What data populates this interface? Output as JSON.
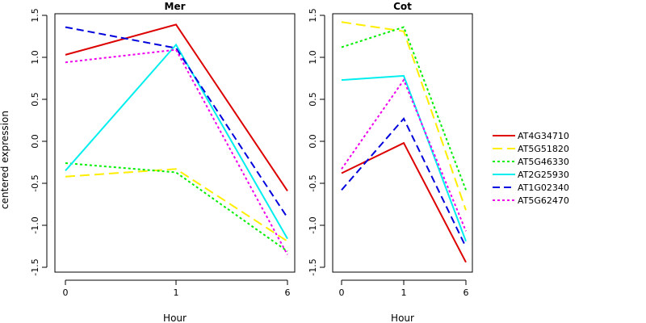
{
  "ylabel": "centered expression",
  "xlabel": "Hour",
  "colors": {
    "AT4G34710": "#dd0000",
    "AT5G51820": "#ffee00",
    "AT5G46330": "#00ee00",
    "AT2G25930": "#00eeee",
    "AT1G02340": "#0000dd",
    "AT5G62470": "#ee00ee"
  },
  "chart_data": [
    {
      "type": "line",
      "title": "Mer",
      "xlabel": "Hour",
      "ylabel": "centered expression",
      "categories": [
        "0",
        "1",
        "6"
      ],
      "yticks": [
        "-1.5",
        "-1.0",
        "-0.5",
        "0.0",
        "0.5",
        "1.0",
        "1.5"
      ],
      "ylim": [
        -1.5,
        1.5
      ],
      "legend": "none",
      "grid": false,
      "series": [
        {
          "name": "AT4G34710",
          "values": [
            1.03,
            1.39,
            -0.59
          ],
          "dash": "solid"
        },
        {
          "name": "AT5G51820",
          "values": [
            -0.42,
            -0.33,
            -1.19
          ],
          "dash": "longdash"
        },
        {
          "name": "AT5G46330",
          "values": [
            -0.26,
            -0.37,
            -1.31
          ],
          "dash": "dotted"
        },
        {
          "name": "AT2G25930",
          "values": [
            -0.35,
            1.15,
            -1.16
          ],
          "dash": "solid"
        },
        {
          "name": "AT1G02340",
          "values": [
            1.36,
            1.11,
            -0.91
          ],
          "dash": "dashed"
        },
        {
          "name": "AT5G62470",
          "values": [
            0.94,
            1.09,
            -1.35
          ],
          "dash": "dotted"
        }
      ]
    },
    {
      "type": "line",
      "title": "Cot",
      "xlabel": "Hour",
      "categories": [
        "0",
        "1",
        "6"
      ],
      "yticks": [
        "-1.5",
        "-1.0",
        "-0.5",
        "0.0",
        "0.5",
        "1.0",
        "1.5"
      ],
      "ylim": [
        -1.5,
        1.5
      ],
      "legend": "right",
      "grid": false,
      "series": [
        {
          "name": "AT4G34710",
          "values": [
            -0.38,
            -0.02,
            -1.44
          ],
          "dash": "solid"
        },
        {
          "name": "AT5G51820",
          "values": [
            1.42,
            1.31,
            -0.82
          ],
          "dash": "longdash"
        },
        {
          "name": "AT5G46330",
          "values": [
            1.12,
            1.36,
            -0.58
          ],
          "dash": "dotted"
        },
        {
          "name": "AT2G25930",
          "values": [
            0.73,
            0.78,
            -1.19
          ],
          "dash": "solid"
        },
        {
          "name": "AT1G02340",
          "values": [
            -0.58,
            0.27,
            -1.26
          ],
          "dash": "dashed"
        },
        {
          "name": "AT5G62470",
          "values": [
            -0.33,
            0.73,
            -1.07
          ],
          "dash": "dotted"
        }
      ]
    }
  ]
}
